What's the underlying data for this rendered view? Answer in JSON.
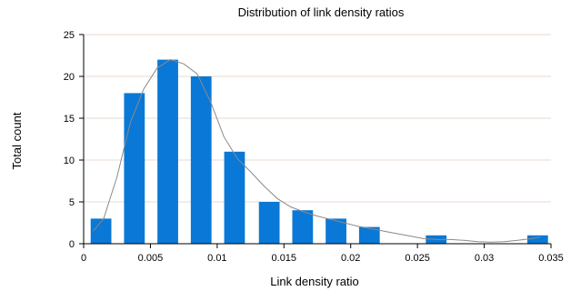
{
  "chart_data": {
    "type": "bar",
    "title": "Distribution of link density ratios",
    "xlabel": "Link density ratio",
    "ylabel": "Total count",
    "xlim": [
      0,
      0.035
    ],
    "ylim": [
      0,
      25
    ],
    "xticks": [
      0,
      0.005,
      0.01,
      0.015,
      0.02,
      0.025,
      0.03,
      0.035
    ],
    "xtick_labels": [
      "0",
      "0.005",
      "0.01",
      "0.015",
      "0.02",
      "0.025",
      "0.03",
      "0.035"
    ],
    "yticks": [
      0,
      5,
      10,
      15,
      20,
      25
    ],
    "ytick_labels": [
      "0",
      "5",
      "10",
      "15",
      "20",
      "25"
    ],
    "grid": true,
    "bin_width": 0.00155,
    "bars": [
      {
        "x": 0.0013,
        "value": 3
      },
      {
        "x": 0.0038,
        "value": 18
      },
      {
        "x": 0.0063,
        "value": 22
      },
      {
        "x": 0.0088,
        "value": 20
      },
      {
        "x": 0.0113,
        "value": 11
      },
      {
        "x": 0.0139,
        "value": 5
      },
      {
        "x": 0.0164,
        "value": 4
      },
      {
        "x": 0.0189,
        "value": 3
      },
      {
        "x": 0.0214,
        "value": 2
      },
      {
        "x": 0.0264,
        "value": 1
      },
      {
        "x": 0.034,
        "value": 1
      }
    ],
    "density_curve": [
      [
        0.0007,
        1.5
      ],
      [
        0.0015,
        3.0
      ],
      [
        0.0025,
        8.0
      ],
      [
        0.0035,
        14.5
      ],
      [
        0.0045,
        18.5
      ],
      [
        0.0055,
        21.0
      ],
      [
        0.0065,
        22.0
      ],
      [
        0.0075,
        21.5
      ],
      [
        0.0085,
        20.3
      ],
      [
        0.0095,
        17.0
      ],
      [
        0.0105,
        12.8
      ],
      [
        0.0115,
        10.2
      ],
      [
        0.0125,
        8.6
      ],
      [
        0.0135,
        6.9
      ],
      [
        0.0145,
        5.4
      ],
      [
        0.0155,
        4.4
      ],
      [
        0.0165,
        3.8
      ],
      [
        0.0175,
        3.3
      ],
      [
        0.0185,
        2.9
      ],
      [
        0.0195,
        2.5
      ],
      [
        0.0205,
        2.1
      ],
      [
        0.0215,
        1.8
      ],
      [
        0.0225,
        1.5
      ],
      [
        0.0235,
        1.2
      ],
      [
        0.0245,
        0.9
      ],
      [
        0.0255,
        0.6
      ],
      [
        0.0265,
        0.5
      ],
      [
        0.0275,
        0.5
      ],
      [
        0.0285,
        0.4
      ],
      [
        0.0295,
        0.25
      ],
      [
        0.0305,
        0.2
      ],
      [
        0.0315,
        0.25
      ],
      [
        0.0325,
        0.4
      ],
      [
        0.0335,
        0.6
      ],
      [
        0.0342,
        0.8
      ]
    ],
    "colors": {
      "bar": "#0a78d6",
      "curve": "#8a8a8a",
      "grid": "#e8d9d0"
    }
  }
}
